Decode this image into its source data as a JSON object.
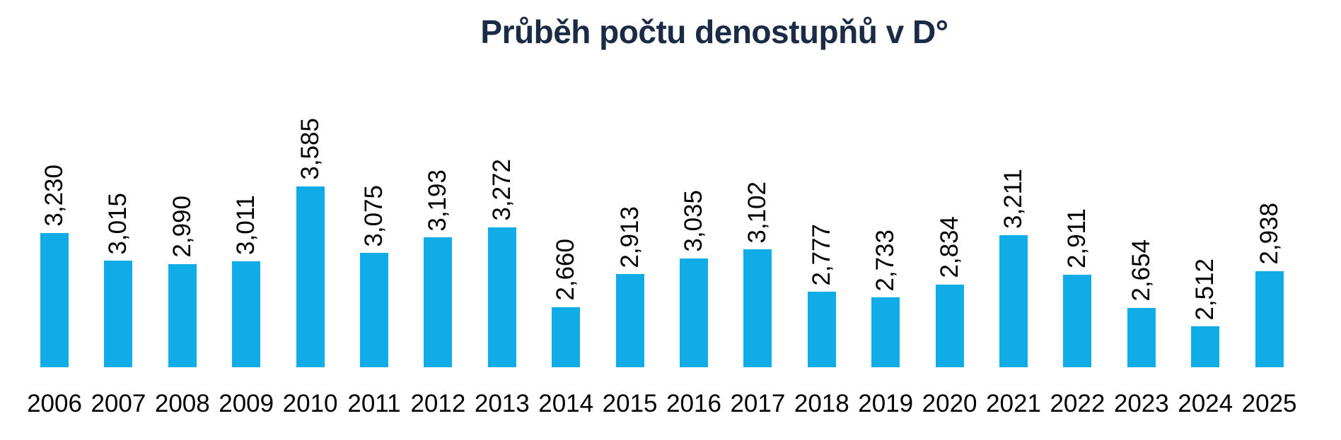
{
  "chart_data": {
    "type": "bar",
    "title": "Průběh počtu denostupňů v D°",
    "categories": [
      "2006",
      "2007",
      "2008",
      "2009",
      "2010",
      "2011",
      "2012",
      "2013",
      "2014",
      "2015",
      "2016",
      "2017",
      "2018",
      "2019",
      "2020",
      "2021",
      "2022",
      "2023",
      "2024",
      "2025"
    ],
    "values": [
      3230,
      3015,
      2990,
      3011,
      3585,
      3075,
      3193,
      3272,
      2660,
      2913,
      3035,
      3102,
      2777,
      2733,
      2834,
      3211,
      2911,
      2654,
      2512,
      2938
    ],
    "value_labels": [
      "3,230",
      "3,015",
      "2,990",
      "3,011",
      "3,585",
      "3,075",
      "3,193",
      "3,272",
      "2,660",
      "2,913",
      "3,035",
      "3,102",
      "2,777",
      "2,733",
      "2,834",
      "3,211",
      "2,911",
      "2,654",
      "2,512",
      "2,938"
    ],
    "xlabel": "",
    "ylabel": "",
    "ylim": [
      2200,
      3700
    ],
    "grid": false,
    "legend_position": "none",
    "value_label_rotation_deg": 90,
    "bar_color": "#10ACE8",
    "title_color": "#1B2B45",
    "label_color": "#000000"
  }
}
